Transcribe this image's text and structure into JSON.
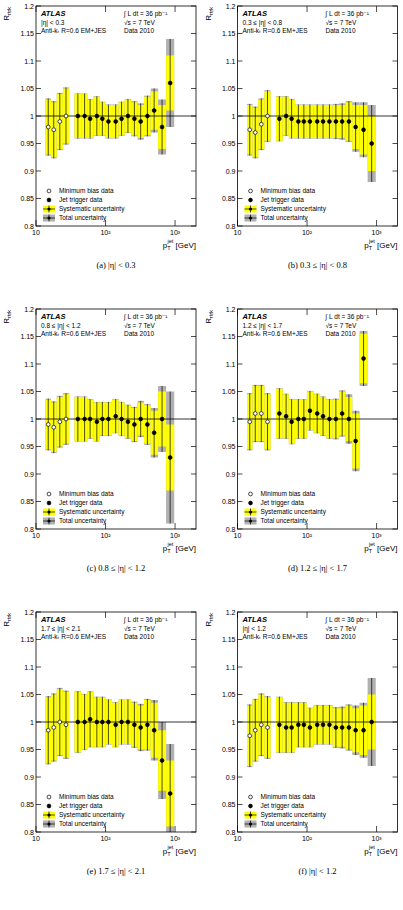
{
  "chart_data": [
    {
      "type": "scatter",
      "title": "(a) |η| < 0.3",
      "annotations": {
        "left": [
          "ATLAS",
          "|η| < 0.3",
          "Anti-kₜ R=0.6 EM+JES"
        ],
        "right": [
          "∫ L dt = 36 pb⁻¹",
          "√s = 7 TeV",
          "Data 2010"
        ]
      },
      "x_label": {
        "main": "p",
        "sub": "T",
        "sup": "jet",
        "unit": " [GeV]"
      },
      "y_label": {
        "main": "R",
        "sub": "rtrk"
      },
      "log": "x",
      "xlim": [
        10,
        2000
      ],
      "ylim": [
        0.8,
        1.2
      ],
      "xticks": [
        10,
        {
          "value": 100,
          "label": "10²"
        },
        {
          "value": 1000,
          "label": "10³"
        }
      ],
      "yticks": [
        0.8,
        0.85,
        0.9,
        0.95,
        1,
        1.05,
        1.1,
        1.15,
        1.2
      ],
      "reference_line": 1,
      "legend": "lower left",
      "band_labels": {
        "syst": "Systematic uncertainty",
        "total": "Total uncertainty"
      },
      "series": [
        {
          "name": "Minimum bias data",
          "color": "#000000",
          "marker": "open-circle",
          "x": [
            15,
            18,
            22,
            27
          ],
          "values": [
            0.98,
            0.975,
            0.99,
            1.0
          ],
          "syst": [
            0.05,
            0.05,
            0.05,
            0.05
          ],
          "total": [
            0.052,
            0.052,
            0.052,
            0.052
          ]
        },
        {
          "name": "Jet trigger data",
          "color": "#000000",
          "marker": "circle",
          "x": [
            40,
            50,
            60,
            75,
            90,
            110,
            140,
            170,
            210,
            260,
            320,
            400,
            500,
            650,
            850
          ],
          "values": [
            1.0,
            1.0,
            0.995,
            1.0,
            0.995,
            0.99,
            0.99,
            0.995,
            1.0,
            0.995,
            0.99,
            1.0,
            1.01,
            0.98,
            1.06
          ],
          "syst": [
            0.04,
            0.04,
            0.035,
            0.035,
            0.03,
            0.03,
            0.03,
            0.03,
            0.03,
            0.03,
            0.03,
            0.035,
            0.035,
            0.04,
            0.05
          ],
          "total": [
            0.041,
            0.041,
            0.036,
            0.036,
            0.031,
            0.031,
            0.031,
            0.031,
            0.031,
            0.032,
            0.033,
            0.037,
            0.04,
            0.05,
            0.08
          ]
        }
      ]
    },
    {
      "type": "scatter",
      "title": "(b) 0.3 ≤ |η| < 0.8",
      "annotations": {
        "left": [
          "ATLAS",
          "0.3 ≤ |η| < 0.8",
          "Anti-kₜ R=0.6 EM+JES"
        ],
        "right": [
          "∫ L dt = 36 pb⁻¹",
          "√s = 7 TeV",
          "Data 2010"
        ]
      },
      "x_label": {
        "main": "p",
        "sub": "T",
        "sup": "jet",
        "unit": " [GeV]"
      },
      "y_label": {
        "main": "R",
        "sub": "rtrk"
      },
      "log": "x",
      "xlim": [
        10,
        2000
      ],
      "ylim": [
        0.8,
        1.2
      ],
      "xticks": [
        10,
        {
          "value": 100,
          "label": "10²"
        },
        {
          "value": 1000,
          "label": "10³"
        }
      ],
      "yticks": [
        0.8,
        0.85,
        0.9,
        0.95,
        1,
        1.05,
        1.1,
        1.15,
        1.2
      ],
      "reference_line": 1,
      "legend": "lower left",
      "band_labels": {
        "syst": "Systematic uncertainty",
        "total": "Total uncertainty"
      },
      "series": [
        {
          "name": "Minimum bias data",
          "color": "#000000",
          "marker": "open-circle",
          "x": [
            15,
            18,
            22,
            27
          ],
          "values": [
            0.975,
            0.97,
            0.985,
            1.0
          ],
          "syst": [
            0.045,
            0.045,
            0.045,
            0.045
          ],
          "total": [
            0.047,
            0.047,
            0.047,
            0.047
          ]
        },
        {
          "name": "Jet trigger data",
          "color": "#000000",
          "marker": "circle",
          "x": [
            40,
            50,
            60,
            75,
            90,
            110,
            140,
            170,
            210,
            260,
            320,
            400,
            500,
            650,
            850
          ],
          "values": [
            0.995,
            1.0,
            0.995,
            0.99,
            0.99,
            0.99,
            0.99,
            0.99,
            0.99,
            0.99,
            0.99,
            0.99,
            0.98,
            0.975,
            0.95
          ],
          "syst": [
            0.04,
            0.035,
            0.035,
            0.03,
            0.03,
            0.03,
            0.03,
            0.03,
            0.03,
            0.03,
            0.03,
            0.035,
            0.04,
            0.045,
            0.05
          ],
          "total": [
            0.041,
            0.036,
            0.036,
            0.031,
            0.031,
            0.031,
            0.031,
            0.031,
            0.031,
            0.032,
            0.033,
            0.037,
            0.045,
            0.05,
            0.07
          ]
        }
      ]
    },
    {
      "type": "scatter",
      "title": "(c) 0.8 ≤ |η| < 1.2",
      "annotations": {
        "left": [
          "ATLAS",
          "0.8 ≤ |η| < 1.2",
          "Anti-kₜ R=0.6 EM+JES"
        ],
        "right": [
          "∫ L dt = 36 pb⁻¹",
          "√s = 7 TeV",
          "Data 2010"
        ]
      },
      "x_label": {
        "main": "p",
        "sub": "T",
        "sup": "jet",
        "unit": " [GeV]"
      },
      "y_label": {
        "main": "R",
        "sub": "rtrk"
      },
      "log": "x",
      "xlim": [
        10,
        2000
      ],
      "ylim": [
        0.8,
        1.2
      ],
      "xticks": [
        10,
        {
          "value": 100,
          "label": "10²"
        },
        {
          "value": 1000,
          "label": "10³"
        }
      ],
      "yticks": [
        0.8,
        0.85,
        0.9,
        0.95,
        1,
        1.05,
        1.1,
        1.15,
        1.2
      ],
      "reference_line": 1,
      "legend": "lower left",
      "band_labels": {
        "syst": "Systematic uncertainty",
        "total": "Total uncertainty"
      },
      "series": [
        {
          "name": "Minimum bias data",
          "color": "#000000",
          "marker": "open-circle",
          "x": [
            15,
            18,
            22,
            27
          ],
          "values": [
            0.99,
            0.985,
            0.995,
            1.0
          ],
          "syst": [
            0.045,
            0.045,
            0.045,
            0.045
          ],
          "total": [
            0.047,
            0.047,
            0.047,
            0.047
          ]
        },
        {
          "name": "Jet trigger data",
          "color": "#000000",
          "marker": "circle",
          "x": [
            40,
            50,
            60,
            75,
            90,
            110,
            140,
            170,
            210,
            260,
            320,
            400,
            500,
            650,
            850
          ],
          "values": [
            1.0,
            1.0,
            1.0,
            0.995,
            1.0,
            1.0,
            1.005,
            1.0,
            0.995,
            0.99,
            1.0,
            0.99,
            0.975,
            1.0,
            0.93
          ],
          "syst": [
            0.04,
            0.04,
            0.035,
            0.035,
            0.03,
            0.03,
            0.03,
            0.03,
            0.03,
            0.03,
            0.03,
            0.035,
            0.04,
            0.05,
            0.06
          ],
          "total": [
            0.041,
            0.041,
            0.036,
            0.036,
            0.031,
            0.031,
            0.031,
            0.031,
            0.031,
            0.032,
            0.033,
            0.037,
            0.045,
            0.06,
            0.12
          ]
        }
      ]
    },
    {
      "type": "scatter",
      "title": "(d) 1.2 ≤ |η| < 1.7",
      "annotations": {
        "left": [
          "ATLAS",
          "1.2 ≤ |η| < 1.7",
          "Anti-kₜ R=0.6 EM+JES"
        ],
        "right": [
          "∫ L dt = 36 pb⁻¹",
          "√s = 7 TeV",
          "Data 2010"
        ]
      },
      "x_label": {
        "main": "p",
        "sub": "T",
        "sup": "jet",
        "unit": " [GeV]"
      },
      "y_label": {
        "main": "R",
        "sub": "rtrk"
      },
      "log": "x",
      "xlim": [
        10,
        2000
      ],
      "ylim": [
        0.8,
        1.2
      ],
      "xticks": [
        10,
        {
          "value": 100,
          "label": "10²"
        },
        {
          "value": 1000,
          "label": "10³"
        }
      ],
      "yticks": [
        0.8,
        0.85,
        0.9,
        0.95,
        1,
        1.05,
        1.1,
        1.15,
        1.2
      ],
      "reference_line": 1,
      "legend": "lower left",
      "band_labels": {
        "syst": "Systematic uncertainty",
        "total": "Total uncertainty"
      },
      "series": [
        {
          "name": "Minimum bias data",
          "color": "#000000",
          "marker": "open-circle",
          "x": [
            15,
            18,
            22,
            27
          ],
          "values": [
            0.995,
            1.01,
            1.01,
            0.995
          ],
          "syst": [
            0.05,
            0.05,
            0.05,
            0.05
          ],
          "total": [
            0.052,
            0.052,
            0.052,
            0.052
          ]
        },
        {
          "name": "Jet trigger data",
          "color": "#000000",
          "marker": "circle",
          "x": [
            40,
            50,
            60,
            75,
            90,
            110,
            140,
            170,
            210,
            260,
            320,
            400,
            500,
            650
          ],
          "values": [
            1.01,
            1.005,
            0.995,
            1.0,
            1.0,
            1.015,
            1.01,
            1.005,
            1.0,
            1.0,
            1.01,
            1.0,
            0.96,
            1.11
          ],
          "syst": [
            0.045,
            0.04,
            0.04,
            0.035,
            0.035,
            0.035,
            0.035,
            0.035,
            0.035,
            0.035,
            0.04,
            0.04,
            0.05,
            0.045
          ],
          "total": [
            0.046,
            0.041,
            0.041,
            0.036,
            0.036,
            0.036,
            0.036,
            0.036,
            0.036,
            0.037,
            0.042,
            0.045,
            0.055,
            0.05
          ]
        }
      ]
    },
    {
      "type": "scatter",
      "title": "(e) 1.7 ≤ |η| < 2.1",
      "annotations": {
        "left": [
          "ATLAS",
          "1.7 ≤ |η| < 2.1",
          "Anti-kₜ R=0.6 EM+JES"
        ],
        "right": [
          "∫ L dt = 36 pb⁻¹",
          "√s = 7 TeV",
          "Data 2010"
        ]
      },
      "x_label": {
        "main": "p",
        "sub": "T",
        "sup": "jet",
        "unit": " [GeV]"
      },
      "y_label": {
        "main": "R",
        "sub": "rtrk"
      },
      "log": "x",
      "xlim": [
        10,
        2000
      ],
      "ylim": [
        0.8,
        1.2
      ],
      "xticks": [
        10,
        {
          "value": 100,
          "label": "10²"
        },
        {
          "value": 1000,
          "label": "10³"
        }
      ],
      "yticks": [
        0.8,
        0.85,
        0.9,
        0.95,
        1,
        1.05,
        1.1,
        1.15,
        1.2
      ],
      "reference_line": 1,
      "legend": "lower left",
      "band_labels": {
        "syst": "Systematic uncertainty",
        "total": "Total uncertainty"
      },
      "series": [
        {
          "name": "Minimum bias data",
          "color": "#000000",
          "marker": "open-circle",
          "x": [
            15,
            18,
            22,
            27
          ],
          "values": [
            0.985,
            0.99,
            1.0,
            0.995
          ],
          "syst": [
            0.06,
            0.06,
            0.06,
            0.06
          ],
          "total": [
            0.062,
            0.062,
            0.062,
            0.062
          ]
        },
        {
          "name": "Jet trigger data",
          "color": "#000000",
          "marker": "circle",
          "x": [
            40,
            50,
            60,
            75,
            90,
            110,
            140,
            170,
            210,
            260,
            320,
            400,
            500,
            650,
            850
          ],
          "values": [
            1.0,
            1.0,
            1.005,
            1.0,
            1.0,
            1.0,
            0.995,
            1.0,
            1.0,
            0.995,
            0.99,
            0.995,
            0.985,
            0.93,
            0.87
          ],
          "syst": [
            0.055,
            0.05,
            0.05,
            0.045,
            0.045,
            0.04,
            0.04,
            0.04,
            0.04,
            0.04,
            0.04,
            0.045,
            0.05,
            0.055,
            0.06
          ],
          "total": [
            0.056,
            0.051,
            0.051,
            0.046,
            0.046,
            0.041,
            0.041,
            0.041,
            0.041,
            0.042,
            0.043,
            0.047,
            0.055,
            0.07,
            0.09
          ]
        }
      ]
    },
    {
      "type": "scatter",
      "title": "(f) |η| < 1.2",
      "annotations": {
        "left": [
          "ATLAS",
          "|η| < 1.2",
          "Anti-kₜ R=0.6 EM+JES"
        ],
        "right": [
          "∫ L dt = 36 pb⁻¹",
          "√s = 7 TeV",
          "Data 2010"
        ]
      },
      "x_label": {
        "main": "p",
        "sub": "T",
        "sup": "jet",
        "unit": " [GeV]"
      },
      "y_label": {
        "main": "R",
        "sub": "rtrk"
      },
      "log": "x",
      "xlim": [
        10,
        2000
      ],
      "ylim": [
        0.8,
        1.2
      ],
      "xticks": [
        10,
        {
          "value": 100,
          "label": "10²"
        },
        {
          "value": 1000,
          "label": "10³"
        }
      ],
      "yticks": [
        0.8,
        0.85,
        0.9,
        0.95,
        1,
        1.05,
        1.1,
        1.15,
        1.2
      ],
      "reference_line": 1,
      "legend": "lower left",
      "band_labels": {
        "syst": "Systematic uncertainty",
        "total": "Total uncertainty"
      },
      "series": [
        {
          "name": "Minimum bias data",
          "color": "#000000",
          "marker": "open-circle",
          "x": [
            15,
            18,
            22,
            27
          ],
          "values": [
            0.975,
            0.985,
            0.995,
            0.99
          ],
          "syst": [
            0.055,
            0.055,
            0.055,
            0.055
          ],
          "total": [
            0.057,
            0.057,
            0.057,
            0.057
          ]
        },
        {
          "name": "Jet trigger data",
          "color": "#000000",
          "marker": "circle",
          "x": [
            40,
            50,
            60,
            75,
            90,
            110,
            140,
            170,
            210,
            260,
            320,
            400,
            500,
            650,
            850
          ],
          "values": [
            0.995,
            0.99,
            0.99,
            0.995,
            0.995,
            0.99,
            0.995,
            0.995,
            0.995,
            0.99,
            0.99,
            0.99,
            0.985,
            0.985,
            1.0
          ],
          "syst": [
            0.05,
            0.045,
            0.045,
            0.04,
            0.04,
            0.035,
            0.035,
            0.035,
            0.035,
            0.035,
            0.035,
            0.04,
            0.04,
            0.045,
            0.05
          ],
          "total": [
            0.051,
            0.046,
            0.046,
            0.041,
            0.041,
            0.036,
            0.036,
            0.036,
            0.036,
            0.037,
            0.038,
            0.042,
            0.045,
            0.05,
            0.08
          ]
        }
      ]
    }
  ]
}
